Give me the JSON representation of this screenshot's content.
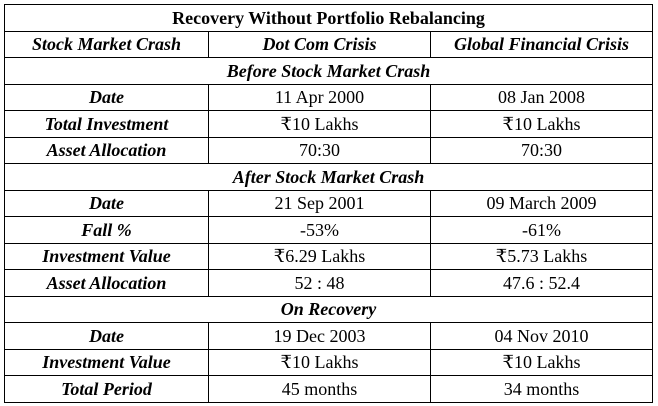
{
  "title": "Recovery Without  Portfolio Rebalancing",
  "header": {
    "col1": "Stock Market Crash",
    "col2": "Dot Com Crisis",
    "col3": "Global Financial Crisis"
  },
  "sections": [
    {
      "heading": "Before Stock Market Crash",
      "rows": [
        {
          "label": "Date",
          "dotcom": "11 Apr 2000",
          "gfc": "08 Jan 2008"
        },
        {
          "label": "Total Investment",
          "dotcom": "₹10 Lakhs",
          "gfc": "₹10 Lakhs"
        },
        {
          "label": "Asset Allocation",
          "dotcom": "70:30",
          "gfc": "70:30"
        }
      ]
    },
    {
      "heading": "After Stock Market Crash",
      "rows": [
        {
          "label": "Date",
          "dotcom": "21 Sep 2001",
          "gfc": "09 March 2009"
        },
        {
          "label": "Fall %",
          "dotcom": "-53%",
          "gfc": "-61%"
        },
        {
          "label": "Investment Value",
          "dotcom": "₹6.29 Lakhs",
          "gfc": "₹5.73 Lakhs"
        },
        {
          "label": "Asset Allocation",
          "dotcom": "52 : 48",
          "gfc": "47.6 : 52.4"
        }
      ]
    },
    {
      "heading": "On Recovery",
      "rows": [
        {
          "label": "Date",
          "dotcom": "19 Dec 2003",
          "gfc": "04 Nov 2010"
        },
        {
          "label": "Investment Value",
          "dotcom": "₹10 Lakhs",
          "gfc": "₹10 Lakhs"
        },
        {
          "label": "Total Period",
          "dotcom": "45 months",
          "gfc": "34 months"
        }
      ]
    }
  ]
}
